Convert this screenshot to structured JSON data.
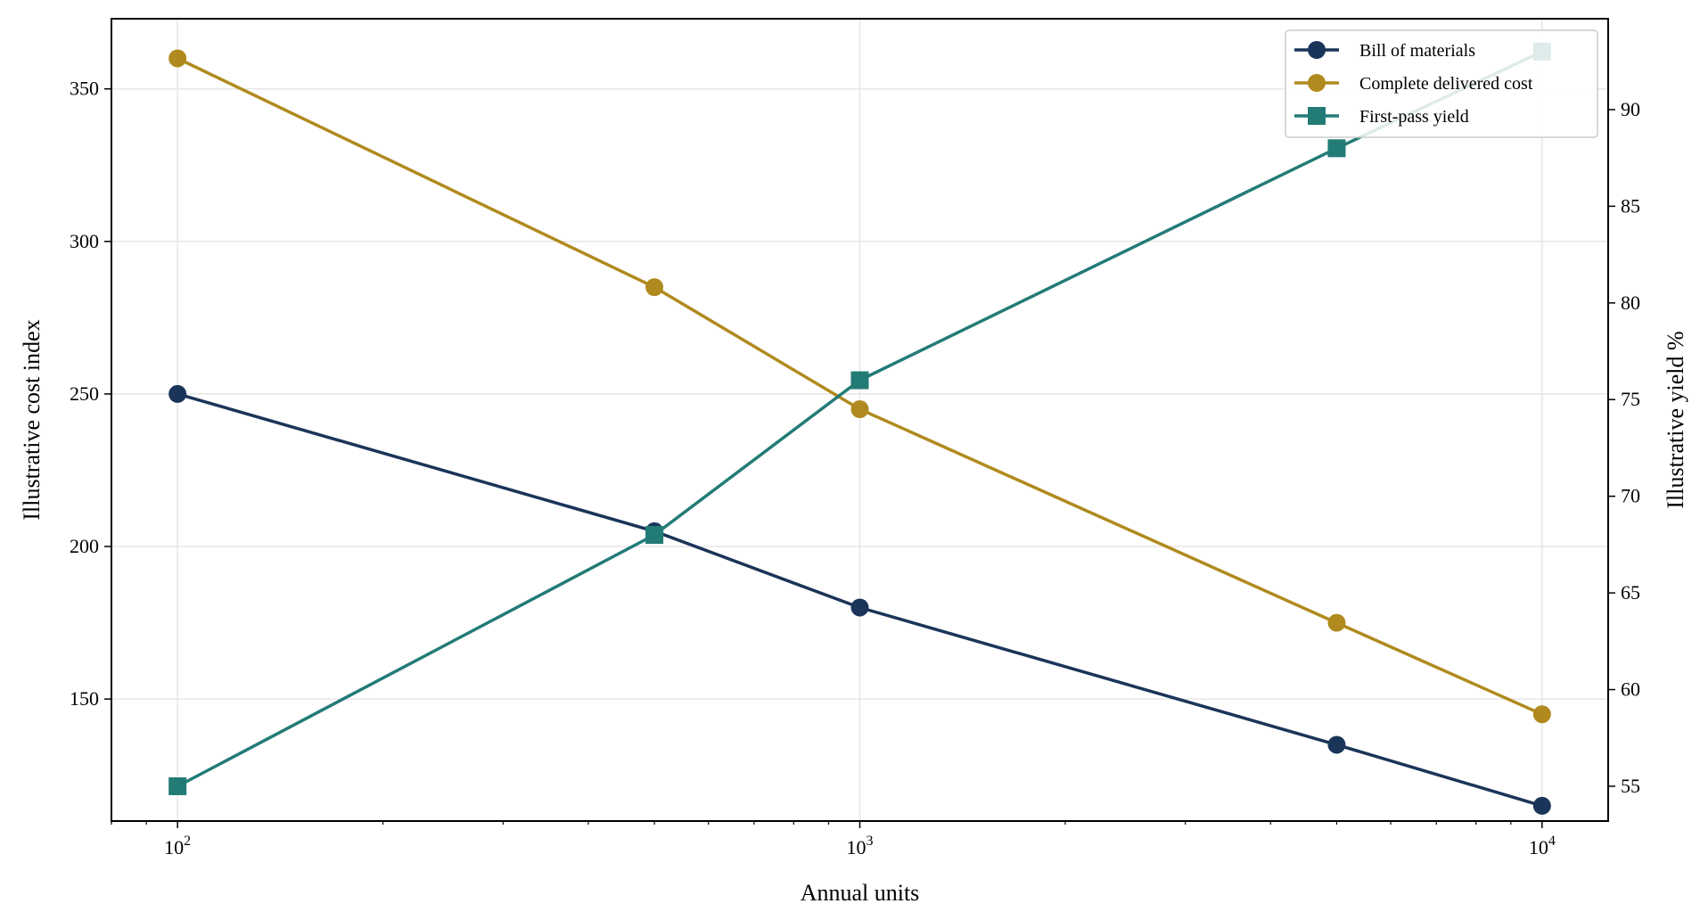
{
  "chart_data": {
    "type": "line",
    "title": "",
    "xlabel": "Annual units",
    "ylabel": "Illustrative cost index",
    "y2label": "Illustrative yield %",
    "xscale": "log",
    "x": [
      100,
      500,
      1000,
      5000,
      10000
    ],
    "xlim": [
      80,
      12500
    ],
    "ylim": [
      110,
      373
    ],
    "y2lim": [
      53.2,
      94.7
    ],
    "xticks": [
      {
        "value": 100,
        "base": "10",
        "exp": "2"
      },
      {
        "value": 1000,
        "base": "10",
        "exp": "3"
      },
      {
        "value": 10000,
        "base": "10",
        "exp": "4"
      }
    ],
    "yticks": [
      150,
      200,
      250,
      300,
      350
    ],
    "y2ticks": [
      55,
      60,
      65,
      70,
      75,
      80,
      85,
      90
    ],
    "grid": true,
    "legend_position": "top-right",
    "series": [
      {
        "name": "Bill of materials",
        "axis": "left",
        "marker": "circle",
        "color": "#1b3459",
        "values": [
          250,
          205,
          180,
          135,
          115
        ]
      },
      {
        "name": "Complete delivered cost",
        "axis": "left",
        "marker": "circle",
        "color": "#b08a1e",
        "values": [
          360,
          285,
          245,
          175,
          145
        ]
      },
      {
        "name": "First-pass yield",
        "axis": "right",
        "marker": "square",
        "color": "#237b76",
        "values": [
          55,
          68,
          76,
          88,
          93
        ]
      }
    ]
  }
}
